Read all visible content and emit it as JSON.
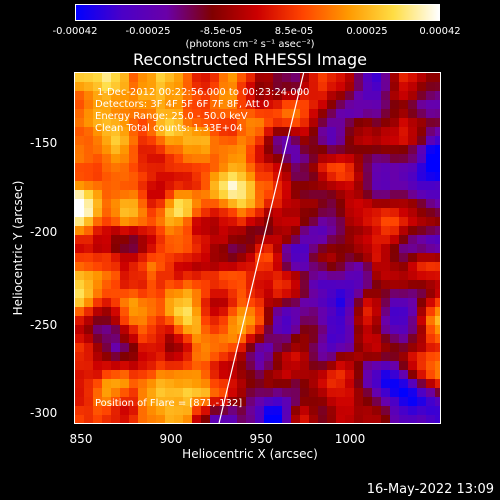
{
  "colorbar": {
    "ticks": [
      "-0.00042",
      "-0.00025",
      "-8.5e-05",
      "8.5e-05",
      "0.00025",
      "0.00042"
    ],
    "units_label": "(photons cm⁻² s⁻¹ asec⁻²)",
    "colors": [
      "#0000ff",
      "#4a00c8",
      "#6a00a8",
      "#800000",
      "#cc0000",
      "#ff4400",
      "#ff9900",
      "#ffdd44",
      "#ffffff"
    ]
  },
  "title": "Reconstructed RHESSI Image",
  "info": {
    "time": "1-Dec-2012 00:22:56.000 to 00:23:24.000",
    "detectors": "Detectors: 3F 4F 5F 6F 7F 8F, Att 0",
    "energy": "Energy Range: 25.0 - 50.0 keV",
    "clean": "Clean     Total counts: 1.33E+04",
    "flare_position": "Position of Flare = [871,-132]"
  },
  "chart_data": {
    "type": "heatmap",
    "title": "Reconstructed RHESSI Image",
    "xlabel": "Heliocentric X (arcsec)",
    "ylabel": "Heliocentric Y (arcsec)",
    "xlim": [
      848,
      1038
    ],
    "ylim": [
      -305,
      -123
    ],
    "xticks": [
      "850",
      "900",
      "950",
      "1000"
    ],
    "yticks": [
      "-150",
      "-200",
      "-250",
      "-300"
    ],
    "xtick_values": [
      850,
      900,
      950,
      1000
    ],
    "ytick_values": [
      -150,
      -200,
      -250,
      -300
    ],
    "value_range": [
      -0.00042,
      0.00042
    ],
    "limb_line": [
      [
        923,
        -305
      ],
      [
        967,
        -123
      ]
    ],
    "hot_region": "left side (x < 930 arcsec) dominated by orange/yellow emission",
    "cool_region": "right side (x > 960 arcsec) dominated by purple/blue values"
  },
  "footer": {
    "datetime": "16-May-2022 13:09"
  }
}
